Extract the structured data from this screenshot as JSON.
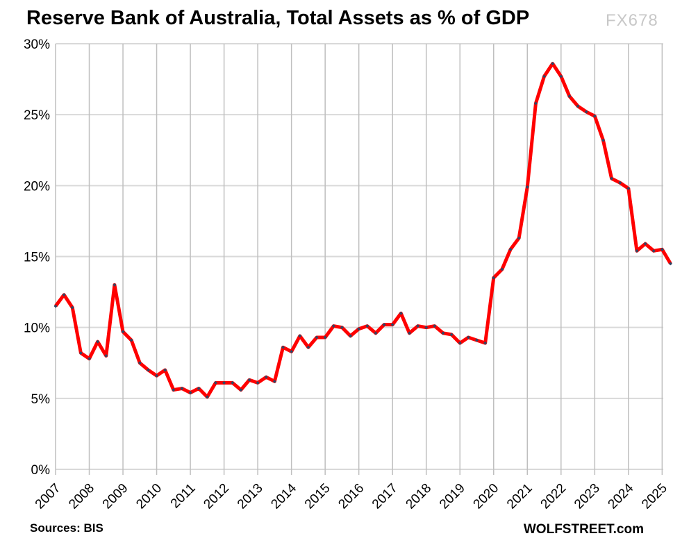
{
  "chart_data": {
    "type": "line",
    "title": "Reserve Bank of Australia, Total Assets as % of GDP",
    "xlabel": "",
    "ylabel": "",
    "frequency": "quarterly",
    "x_start": "2007 Q1",
    "x_tick_labels": [
      "2007",
      "2008",
      "2009",
      "2010",
      "2011",
      "2012",
      "2013",
      "2014",
      "2015",
      "2016",
      "2017",
      "2018",
      "2019",
      "2020",
      "2021",
      "2022",
      "2023",
      "2024",
      "2025"
    ],
    "y_tick_labels": [
      "0%",
      "5%",
      "10%",
      "15%",
      "20%",
      "25%",
      "30%"
    ],
    "ylim": [
      0,
      30
    ],
    "grid": true,
    "legend": "none",
    "series": [
      {
        "color": "#ff0000",
        "marker_color": "#2f4766",
        "values": [
          11.5,
          12.3,
          11.4,
          8.2,
          7.8,
          9.0,
          8.0,
          13.0,
          9.7,
          9.1,
          7.5,
          7.0,
          6.6,
          7.0,
          5.6,
          5.7,
          5.4,
          5.7,
          5.1,
          6.1,
          6.1,
          6.1,
          5.6,
          6.3,
          6.1,
          6.5,
          6.2,
          8.6,
          8.3,
          9.4,
          8.6,
          9.3,
          9.3,
          10.1,
          10.0,
          9.4,
          9.9,
          10.1,
          9.6,
          10.2,
          10.2,
          11.0,
          9.6,
          10.1,
          10.0,
          10.1,
          9.6,
          9.5,
          8.9,
          9.3,
          9.1,
          8.9,
          13.5,
          14.1,
          15.5,
          16.3,
          19.9,
          25.8,
          27.7,
          28.6,
          27.7,
          26.3,
          25.6,
          25.2,
          24.9,
          23.2,
          20.5,
          20.2,
          19.8,
          15.4,
          15.9,
          15.4,
          15.5,
          14.5
        ]
      }
    ]
  },
  "footer": {
    "source": "Sources: BIS",
    "brand": "WOLFSTREET.com",
    "watermark": "FX678"
  }
}
